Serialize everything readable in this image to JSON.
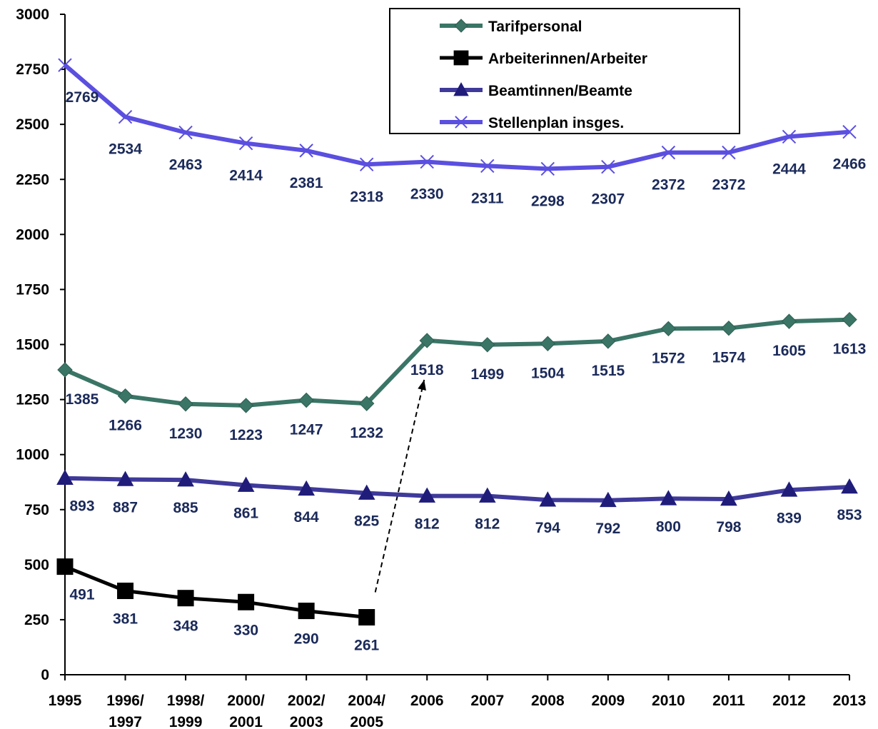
{
  "chart_data": {
    "type": "line",
    "title": "",
    "xlabel": "",
    "ylabel": "",
    "ylim": [
      0,
      3000
    ],
    "yticks": [
      0,
      250,
      500,
      750,
      1000,
      1250,
      1500,
      1750,
      2000,
      2250,
      2500,
      2750,
      3000
    ],
    "categories": [
      [
        "1995"
      ],
      [
        "1996/",
        "1997"
      ],
      [
        "1998/",
        "1999"
      ],
      [
        "2000/",
        "2001"
      ],
      [
        "2002/",
        "2003"
      ],
      [
        "2004/",
        "2005"
      ],
      [
        "2006"
      ],
      [
        "2007"
      ],
      [
        "2008"
      ],
      [
        "2009"
      ],
      [
        "2010"
      ],
      [
        "2011"
      ],
      [
        "2012"
      ],
      [
        "2013"
      ]
    ],
    "grid": false,
    "legend_position": "top-right",
    "series": [
      {
        "name": "Tarifpersonal",
        "color": "#3a7566",
        "marker": "diamond",
        "values": [
          1385,
          1266,
          1230,
          1223,
          1247,
          1232,
          1518,
          1499,
          1504,
          1515,
          1572,
          1574,
          1605,
          1613
        ]
      },
      {
        "name": "Arbeiterinnen/Arbeiter",
        "color": "#000000",
        "marker": "square",
        "values": [
          491,
          381,
          348,
          330,
          290,
          261,
          null,
          null,
          null,
          null,
          null,
          null,
          null,
          null
        ]
      },
      {
        "name": "Beamtinnen/Beamte",
        "color": "#3f3a9a",
        "marker": "triangle",
        "values": [
          893,
          887,
          885,
          861,
          844,
          825,
          812,
          812,
          794,
          792,
          800,
          798,
          839,
          853
        ]
      },
      {
        "name": "Stellenplan insges.",
        "color": "#5b4fe0",
        "marker": "x",
        "values": [
          2769,
          2534,
          2463,
          2414,
          2381,
          2318,
          2330,
          2311,
          2298,
          2307,
          2372,
          2372,
          2444,
          2466
        ]
      }
    ],
    "annotations": [
      {
        "type": "dashed-arrow",
        "from_series": "Arbeiterinnen/Arbeiter",
        "from_category_index": 5,
        "to_series": "Tarifpersonal",
        "to_category_index": 6
      }
    ]
  }
}
